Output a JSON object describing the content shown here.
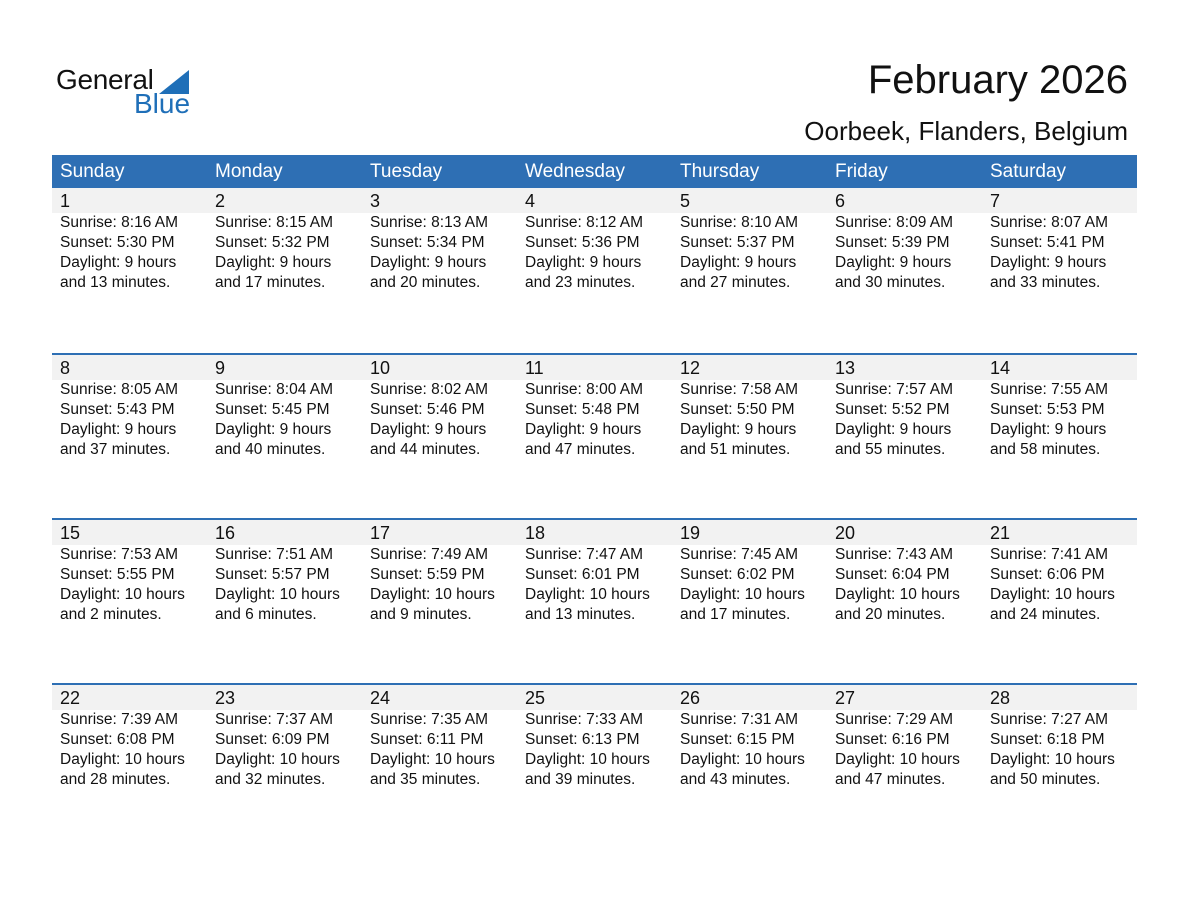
{
  "logo": {
    "general": "General",
    "blue": "Blue"
  },
  "title": "February 2026",
  "location": "Oorbeek, Flanders, Belgium",
  "weekdays": [
    "Sunday",
    "Monday",
    "Tuesday",
    "Wednesday",
    "Thursday",
    "Friday",
    "Saturday"
  ],
  "colors": {
    "header": "#2e6fb4",
    "band": "#f2f2f2",
    "brand": "#1f6fb8"
  },
  "weeks": [
    [
      {
        "day": "1",
        "sunrise": "Sunrise: 8:16 AM",
        "sunset": "Sunset: 5:30 PM",
        "daylight": "Daylight: 9 hours",
        "minutes": "and 13 minutes."
      },
      {
        "day": "2",
        "sunrise": "Sunrise: 8:15 AM",
        "sunset": "Sunset: 5:32 PM",
        "daylight": "Daylight: 9 hours",
        "minutes": "and 17 minutes."
      },
      {
        "day": "3",
        "sunrise": "Sunrise: 8:13 AM",
        "sunset": "Sunset: 5:34 PM",
        "daylight": "Daylight: 9 hours",
        "minutes": "and 20 minutes."
      },
      {
        "day": "4",
        "sunrise": "Sunrise: 8:12 AM",
        "sunset": "Sunset: 5:36 PM",
        "daylight": "Daylight: 9 hours",
        "minutes": "and 23 minutes."
      },
      {
        "day": "5",
        "sunrise": "Sunrise: 8:10 AM",
        "sunset": "Sunset: 5:37 PM",
        "daylight": "Daylight: 9 hours",
        "minutes": "and 27 minutes."
      },
      {
        "day": "6",
        "sunrise": "Sunrise: 8:09 AM",
        "sunset": "Sunset: 5:39 PM",
        "daylight": "Daylight: 9 hours",
        "minutes": "and 30 minutes."
      },
      {
        "day": "7",
        "sunrise": "Sunrise: 8:07 AM",
        "sunset": "Sunset: 5:41 PM",
        "daylight": "Daylight: 9 hours",
        "minutes": "and 33 minutes."
      }
    ],
    [
      {
        "day": "8",
        "sunrise": "Sunrise: 8:05 AM",
        "sunset": "Sunset: 5:43 PM",
        "daylight": "Daylight: 9 hours",
        "minutes": "and 37 minutes."
      },
      {
        "day": "9",
        "sunrise": "Sunrise: 8:04 AM",
        "sunset": "Sunset: 5:45 PM",
        "daylight": "Daylight: 9 hours",
        "minutes": "and 40 minutes."
      },
      {
        "day": "10",
        "sunrise": "Sunrise: 8:02 AM",
        "sunset": "Sunset: 5:46 PM",
        "daylight": "Daylight: 9 hours",
        "minutes": "and 44 minutes."
      },
      {
        "day": "11",
        "sunrise": "Sunrise: 8:00 AM",
        "sunset": "Sunset: 5:48 PM",
        "daylight": "Daylight: 9 hours",
        "minutes": "and 47 minutes."
      },
      {
        "day": "12",
        "sunrise": "Sunrise: 7:58 AM",
        "sunset": "Sunset: 5:50 PM",
        "daylight": "Daylight: 9 hours",
        "minutes": "and 51 minutes."
      },
      {
        "day": "13",
        "sunrise": "Sunrise: 7:57 AM",
        "sunset": "Sunset: 5:52 PM",
        "daylight": "Daylight: 9 hours",
        "minutes": "and 55 minutes."
      },
      {
        "day": "14",
        "sunrise": "Sunrise: 7:55 AM",
        "sunset": "Sunset: 5:53 PM",
        "daylight": "Daylight: 9 hours",
        "minutes": "and 58 minutes."
      }
    ],
    [
      {
        "day": "15",
        "sunrise": "Sunrise: 7:53 AM",
        "sunset": "Sunset: 5:55 PM",
        "daylight": "Daylight: 10 hours",
        "minutes": "and 2 minutes."
      },
      {
        "day": "16",
        "sunrise": "Sunrise: 7:51 AM",
        "sunset": "Sunset: 5:57 PM",
        "daylight": "Daylight: 10 hours",
        "minutes": "and 6 minutes."
      },
      {
        "day": "17",
        "sunrise": "Sunrise: 7:49 AM",
        "sunset": "Sunset: 5:59 PM",
        "daylight": "Daylight: 10 hours",
        "minutes": "and 9 minutes."
      },
      {
        "day": "18",
        "sunrise": "Sunrise: 7:47 AM",
        "sunset": "Sunset: 6:01 PM",
        "daylight": "Daylight: 10 hours",
        "minutes": "and 13 minutes."
      },
      {
        "day": "19",
        "sunrise": "Sunrise: 7:45 AM",
        "sunset": "Sunset: 6:02 PM",
        "daylight": "Daylight: 10 hours",
        "minutes": "and 17 minutes."
      },
      {
        "day": "20",
        "sunrise": "Sunrise: 7:43 AM",
        "sunset": "Sunset: 6:04 PM",
        "daylight": "Daylight: 10 hours",
        "minutes": "and 20 minutes."
      },
      {
        "day": "21",
        "sunrise": "Sunrise: 7:41 AM",
        "sunset": "Sunset: 6:06 PM",
        "daylight": "Daylight: 10 hours",
        "minutes": "and 24 minutes."
      }
    ],
    [
      {
        "day": "22",
        "sunrise": "Sunrise: 7:39 AM",
        "sunset": "Sunset: 6:08 PM",
        "daylight": "Daylight: 10 hours",
        "minutes": "and 28 minutes."
      },
      {
        "day": "23",
        "sunrise": "Sunrise: 7:37 AM",
        "sunset": "Sunset: 6:09 PM",
        "daylight": "Daylight: 10 hours",
        "minutes": "and 32 minutes."
      },
      {
        "day": "24",
        "sunrise": "Sunrise: 7:35 AM",
        "sunset": "Sunset: 6:11 PM",
        "daylight": "Daylight: 10 hours",
        "minutes": "and 35 minutes."
      },
      {
        "day": "25",
        "sunrise": "Sunrise: 7:33 AM",
        "sunset": "Sunset: 6:13 PM",
        "daylight": "Daylight: 10 hours",
        "minutes": "and 39 minutes."
      },
      {
        "day": "26",
        "sunrise": "Sunrise: 7:31 AM",
        "sunset": "Sunset: 6:15 PM",
        "daylight": "Daylight: 10 hours",
        "minutes": "and 43 minutes."
      },
      {
        "day": "27",
        "sunrise": "Sunrise: 7:29 AM",
        "sunset": "Sunset: 6:16 PM",
        "daylight": "Daylight: 10 hours",
        "minutes": "and 47 minutes."
      },
      {
        "day": "28",
        "sunrise": "Sunrise: 7:27 AM",
        "sunset": "Sunset: 6:18 PM",
        "daylight": "Daylight: 10 hours",
        "minutes": "and 50 minutes."
      }
    ]
  ]
}
